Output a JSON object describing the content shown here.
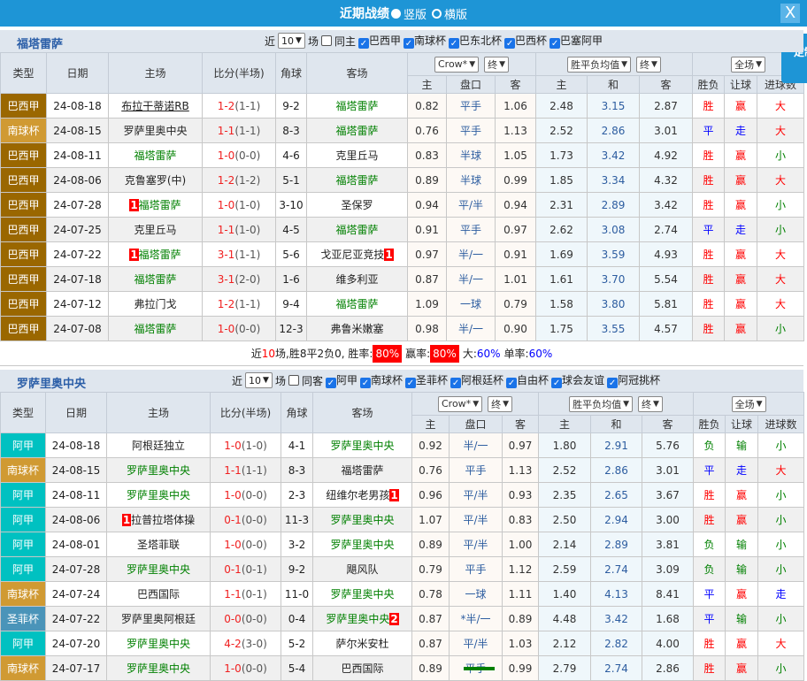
{
  "title": {
    "text": "近期战绩",
    "opt1": "竖版",
    "opt2": "横版",
    "close": "X"
  },
  "side_button": "定制",
  "colors": {
    "brand": "#1e95d6",
    "win": "#ff0000",
    "draw": "#0000ff",
    "lose": "#008000",
    "types": {
      "巴西甲": "#9a6700",
      "南球杯": "#d09a33",
      "阿甲": "#00c1c1",
      "圣菲杯": "#4a94b9"
    }
  },
  "headers": {
    "type": "类型",
    "date": "日期",
    "home": "主场",
    "score": "比分(半场)",
    "corner": "角球",
    "away": "客场",
    "odds_company": "Crow*",
    "odds_stage": "终",
    "avg": "胜平负均值",
    "avg_stage": "终",
    "half": "全场",
    "sub": [
      "主",
      "盘口",
      "客",
      "主",
      "和",
      "客",
      "胜负",
      "让球",
      "进球数"
    ]
  },
  "sections": [
    {
      "team": "福塔雷萨",
      "near": "近",
      "count": "10",
      "unit": "场",
      "same": "同主",
      "leagues": [
        "巴西甲",
        "南球杯",
        "巴东北杯",
        "巴西杯",
        "巴塞阿甲"
      ],
      "rows": [
        {
          "type": "巴西甲",
          "date": "24-08-18",
          "home": "布拉干蒂诺RB",
          "hu": true,
          "score": "1-2",
          "ht": "(1-1)",
          "corner": "9-2",
          "away": "福塔雷萨",
          "ag": true,
          "o": [
            "0.82",
            "平手",
            "1.06",
            "2.48",
            "3.15",
            "2.87"
          ],
          "r": [
            "胜",
            "赢",
            "大"
          ]
        },
        {
          "type": "南球杯",
          "date": "24-08-15",
          "home": "罗萨里奥中央",
          "score": "1-1",
          "ht": "(1-1)",
          "corner": "8-3",
          "away": "福塔雷萨",
          "ag": true,
          "o": [
            "0.76",
            "平手",
            "1.13",
            "2.52",
            "2.86",
            "3.01"
          ],
          "r": [
            "平",
            "走",
            "大"
          ]
        },
        {
          "type": "巴西甲",
          "date": "24-08-11",
          "home": "福塔雷萨",
          "hg": true,
          "score": "1-0",
          "ht": "(0-0)",
          "corner": "4-6",
          "away": "克里丘马",
          "o": [
            "0.83",
            "半球",
            "1.05",
            "1.73",
            "3.42",
            "4.92"
          ],
          "r": [
            "胜",
            "赢",
            "小"
          ]
        },
        {
          "type": "巴西甲",
          "date": "24-08-06",
          "home": "克鲁塞罗(中)",
          "score": "1-2",
          "ht": "(1-2)",
          "corner": "5-1",
          "away": "福塔雷萨",
          "ag": true,
          "o": [
            "0.89",
            "半球",
            "0.99",
            "1.85",
            "3.34",
            "4.32"
          ],
          "r": [
            "胜",
            "赢",
            "大"
          ]
        },
        {
          "type": "巴西甲",
          "date": "24-07-28",
          "home": "福塔雷萨",
          "hg": true,
          "hrc": "1",
          "score": "1-0",
          "ht": "(1-0)",
          "corner": "3-10",
          "away": "圣保罗",
          "o": [
            "0.94",
            "平/半",
            "0.94",
            "2.31",
            "2.89",
            "3.42"
          ],
          "r": [
            "胜",
            "赢",
            "小"
          ]
        },
        {
          "type": "巴西甲",
          "date": "24-07-25",
          "home": "克里丘马",
          "score": "1-1",
          "ht": "(1-0)",
          "corner": "4-5",
          "away": "福塔雷萨",
          "ag": true,
          "o": [
            "0.91",
            "平手",
            "0.97",
            "2.62",
            "3.08",
            "2.74"
          ],
          "r": [
            "平",
            "走",
            "小"
          ]
        },
        {
          "type": "巴西甲",
          "date": "24-07-22",
          "home": "福塔雷萨",
          "hg": true,
          "hrc": "1",
          "score": "3-1",
          "ht": "(1-1)",
          "corner": "5-6",
          "away": "戈亚尼亚竞技",
          "arc": "1",
          "o": [
            "0.97",
            "半/一",
            "0.91",
            "1.69",
            "3.59",
            "4.93"
          ],
          "r": [
            "胜",
            "赢",
            "大"
          ]
        },
        {
          "type": "巴西甲",
          "date": "24-07-18",
          "home": "福塔雷萨",
          "hg": true,
          "score": "3-1",
          "ht": "(2-0)",
          "corner": "1-6",
          "away": "维多利亚",
          "o": [
            "0.87",
            "半/一",
            "1.01",
            "1.61",
            "3.70",
            "5.54"
          ],
          "r": [
            "胜",
            "赢",
            "大"
          ]
        },
        {
          "type": "巴西甲",
          "date": "24-07-12",
          "home": "弗拉门戈",
          "score": "1-2",
          "ht": "(1-1)",
          "corner": "9-4",
          "away": "福塔雷萨",
          "ag": true,
          "o": [
            "1.09",
            "一球",
            "0.79",
            "1.58",
            "3.80",
            "5.81"
          ],
          "r": [
            "胜",
            "赢",
            "大"
          ]
        },
        {
          "type": "巴西甲",
          "date": "24-07-08",
          "home": "福塔雷萨",
          "hg": true,
          "score": "1-0",
          "ht": "(0-0)",
          "corner": "12-3",
          "away": "弗鲁米嫩塞",
          "o": [
            "0.98",
            "半/一",
            "0.90",
            "1.75",
            "3.55",
            "4.57"
          ],
          "r": [
            "胜",
            "赢",
            "小"
          ]
        }
      ],
      "summary": {
        "a": "近",
        "n": "10",
        "b": "场,胜8平2负0, 胜率:",
        "win_rate": "80%",
        "c": "赢率:",
        "cover_rate": "80%",
        "d": "大:",
        "over_rate": "60%",
        "e": "单率:",
        "odd_rate": "60%"
      }
    },
    {
      "team": "罗萨里奥中央",
      "near": "近",
      "count": "10",
      "unit": "场",
      "same": "同客",
      "leagues": [
        "阿甲",
        "南球杯",
        "圣菲杯",
        "阿根廷杯",
        "自由杯",
        "球会友谊",
        "阿冠挑杯"
      ],
      "rows": [
        {
          "type": "阿甲",
          "date": "24-08-18",
          "home": "阿根廷独立",
          "score": "1-0",
          "ht": "(1-0)",
          "corner": "4-1",
          "away": "罗萨里奥中央",
          "ag": true,
          "o": [
            "0.92",
            "半/一",
            "0.97",
            "1.80",
            "2.91",
            "5.76"
          ],
          "r": [
            "负",
            "输",
            "小"
          ]
        },
        {
          "type": "南球杯",
          "date": "24-08-15",
          "home": "罗萨里奥中央",
          "hg": true,
          "score": "1-1",
          "ht": "(1-1)",
          "corner": "8-3",
          "away": "福塔雷萨",
          "o": [
            "0.76",
            "平手",
            "1.13",
            "2.52",
            "2.86",
            "3.01"
          ],
          "r": [
            "平",
            "走",
            "大"
          ]
        },
        {
          "type": "阿甲",
          "date": "24-08-11",
          "home": "罗萨里奥中央",
          "hg": true,
          "score": "1-0",
          "ht": "(0-0)",
          "corner": "2-3",
          "away": "纽维尔老男孩",
          "arc": "1",
          "o": [
            "0.96",
            "平/半",
            "0.93",
            "2.35",
            "2.65",
            "3.67"
          ],
          "r": [
            "胜",
            "赢",
            "小"
          ]
        },
        {
          "type": "阿甲",
          "date": "24-08-06",
          "home": "拉普拉塔体操",
          "hrc": "1",
          "score": "0-1",
          "ht": "(0-0)",
          "corner": "11-3",
          "away": "罗萨里奥中央",
          "ag": true,
          "o": [
            "1.07",
            "平/半",
            "0.83",
            "2.50",
            "2.94",
            "3.00"
          ],
          "r": [
            "胜",
            "赢",
            "小"
          ]
        },
        {
          "type": "阿甲",
          "date": "24-08-01",
          "home": "圣塔菲联",
          "score": "1-0",
          "ht": "(0-0)",
          "corner": "3-2",
          "away": "罗萨里奥中央",
          "ag": true,
          "o": [
            "0.89",
            "平/半",
            "1.00",
            "2.14",
            "2.89",
            "3.81"
          ],
          "r": [
            "负",
            "输",
            "小"
          ]
        },
        {
          "type": "阿甲",
          "date": "24-07-28",
          "home": "罗萨里奥中央",
          "hg": true,
          "score": "0-1",
          "ht": "(0-1)",
          "corner": "9-2",
          "away": "飓风队",
          "o": [
            "0.79",
            "平手",
            "1.12",
            "2.59",
            "2.74",
            "3.09"
          ],
          "r": [
            "负",
            "输",
            "小"
          ]
        },
        {
          "type": "南球杯",
          "date": "24-07-24",
          "home": "巴西国际",
          "score": "1-1",
          "ht": "(0-1)",
          "corner": "11-0",
          "away": "罗萨里奥中央",
          "ag": true,
          "o": [
            "0.78",
            "一球",
            "1.11",
            "1.40",
            "4.13",
            "8.41"
          ],
          "r": [
            "平",
            "赢",
            "走"
          ]
        },
        {
          "type": "圣菲杯",
          "date": "24-07-22",
          "home": "罗萨里奥阿根廷",
          "score": "0-0",
          "ht": "(0-0)",
          "corner": "0-4",
          "away": "罗萨里奥中央",
          "ag": true,
          "arc": "2",
          "o": [
            "0.87",
            "*半/一",
            "0.89",
            "4.48",
            "3.42",
            "1.68"
          ],
          "r": [
            "平",
            "输",
            "小"
          ]
        },
        {
          "type": "阿甲",
          "date": "24-07-20",
          "home": "罗萨里奥中央",
          "hg": true,
          "score": "4-2",
          "ht": "(3-0)",
          "corner": "5-2",
          "away": "萨尔米安杜",
          "o": [
            "0.87",
            "平/半",
            "1.03",
            "2.12",
            "2.82",
            "4.00"
          ],
          "r": [
            "胜",
            "赢",
            "大"
          ]
        },
        {
          "type": "南球杯",
          "date": "24-07-17",
          "home": "罗萨里奥中央",
          "hg": true,
          "score": "1-0",
          "ht": "(0-0)",
          "corner": "5-4",
          "away": "巴西国际",
          "o": [
            "0.89",
            "平手",
            "0.99",
            "2.79",
            "2.74",
            "2.86"
          ],
          "r": [
            "胜",
            "赢",
            "小"
          ]
        }
      ]
    }
  ]
}
